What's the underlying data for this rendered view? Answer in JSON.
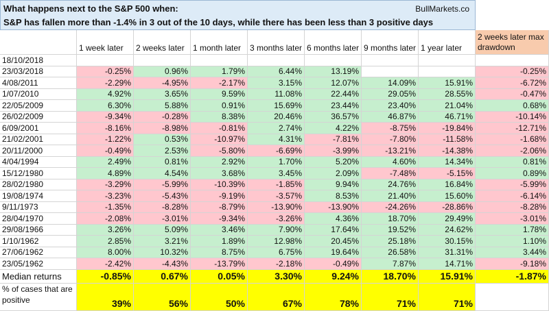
{
  "header": {
    "title": "What happens next to the S&P 500 when:",
    "source": "BullMarkets.co",
    "subtitle": "S&P has fallen more than -1.4% in 3 out of the 10 days, while there has been less than 3 positive days"
  },
  "table": {
    "columns": [
      "1 week later",
      "2 weeks later",
      "1 month later",
      "3 months later",
      "6 months later",
      "9 months later",
      "1 year later",
      "2 weeks later max drawdown"
    ],
    "rows": [
      {
        "date": "18/10/2018",
        "cells": [
          null,
          null,
          null,
          null,
          null,
          null,
          null,
          null
        ]
      },
      {
        "date": "23/03/2018",
        "cells": [
          "-0.25%",
          "0.96%",
          "1.79%",
          "6.44%",
          "13.19%",
          null,
          null,
          "-0.25%"
        ]
      },
      {
        "date": "4/08/2011",
        "cells": [
          "-2.29%",
          "-4.95%",
          "-2.17%",
          "3.15%",
          "12.07%",
          "14.09%",
          "15.91%",
          "-6.72%"
        ]
      },
      {
        "date": "1/07/2010",
        "cells": [
          "4.92%",
          "3.65%",
          "9.59%",
          "11.08%",
          "22.44%",
          "29.05%",
          "28.55%",
          "-0.47%"
        ]
      },
      {
        "date": "22/05/2009",
        "cells": [
          "6.30%",
          "5.88%",
          "0.91%",
          "15.69%",
          "23.44%",
          "23.40%",
          "21.04%",
          "0.68%"
        ]
      },
      {
        "date": "26/02/2009",
        "cells": [
          "-9.34%",
          "-0.28%",
          "8.38%",
          "20.46%",
          "36.57%",
          "46.87%",
          "46.71%",
          "-10.14%"
        ]
      },
      {
        "date": "6/09/2001",
        "cells": [
          "-8.16%",
          "-8.98%",
          "-0.81%",
          "2.74%",
          "4.22%",
          "-8.75%",
          "-19.84%",
          "-12.71%"
        ]
      },
      {
        "date": "21/02/2001",
        "cells": [
          "-1.22%",
          "0.53%",
          "-10.97%",
          "4.31%",
          "-7.81%",
          "-7.80%",
          "-11.58%",
          "-1.68%"
        ]
      },
      {
        "date": "20/11/2000",
        "cells": [
          "-0.49%",
          "2.53%",
          "-5.80%",
          "-6.69%",
          "-3.99%",
          "-13.21%",
          "-14.38%",
          "-2.06%"
        ]
      },
      {
        "date": "4/04/1994",
        "cells": [
          "2.49%",
          "0.81%",
          "2.92%",
          "1.70%",
          "5.20%",
          "4.60%",
          "14.34%",
          "0.81%"
        ]
      },
      {
        "date": "15/12/1980",
        "cells": [
          "4.89%",
          "4.54%",
          "3.68%",
          "3.45%",
          "2.09%",
          "-7.48%",
          "-5.15%",
          "0.89%"
        ]
      },
      {
        "date": "28/02/1980",
        "cells": [
          "-3.29%",
          "-5.99%",
          "-10.39%",
          "-1.85%",
          "9.94%",
          "24.76%",
          "16.84%",
          "-5.99%"
        ]
      },
      {
        "date": "19/08/1974",
        "cells": [
          "-3.23%",
          "-5.43%",
          "-9.19%",
          "-3.57%",
          "8.53%",
          "21.40%",
          "15.60%",
          "-6.14%"
        ]
      },
      {
        "date": "9/11/1973",
        "cells": [
          "-1.35%",
          "-8.28%",
          "-8.79%",
          "-13.90%",
          "-13.90%",
          "-24.26%",
          "-28.86%",
          "-8.28%"
        ]
      },
      {
        "date": "28/04/1970",
        "cells": [
          "-2.08%",
          "-3.01%",
          "-9.34%",
          "-3.26%",
          "4.36%",
          "18.70%",
          "29.49%",
          "-3.01%"
        ]
      },
      {
        "date": "29/08/1966",
        "cells": [
          "3.26%",
          "5.09%",
          "3.46%",
          "7.90%",
          "17.64%",
          "19.52%",
          "24.62%",
          "1.78%"
        ]
      },
      {
        "date": "1/10/1962",
        "cells": [
          "2.85%",
          "3.21%",
          "1.89%",
          "12.98%",
          "20.45%",
          "25.18%",
          "30.15%",
          "1.10%"
        ]
      },
      {
        "date": "27/06/1962",
        "cells": [
          "8.00%",
          "10.32%",
          "8.75%",
          "6.75%",
          "19.64%",
          "26.58%",
          "31.31%",
          "3.44%"
        ]
      },
      {
        "date": "23/05/1962",
        "cells": [
          "-2.42%",
          "-4.43%",
          "-13.79%",
          "-2.18%",
          "-0.49%",
          "7.87%",
          "14.71%",
          "-9.18%"
        ]
      }
    ],
    "median": {
      "label": "Median returns",
      "cells": [
        "-0.85%",
        "0.67%",
        "0.05%",
        "3.30%",
        "9.24%",
        "18.70%",
        "15.91%",
        "-1.87%"
      ]
    },
    "positive": {
      "label": "% of cases that are positive",
      "cells": [
        "39%",
        "56%",
        "50%",
        "67%",
        "78%",
        "71%",
        "71%"
      ]
    }
  }
}
